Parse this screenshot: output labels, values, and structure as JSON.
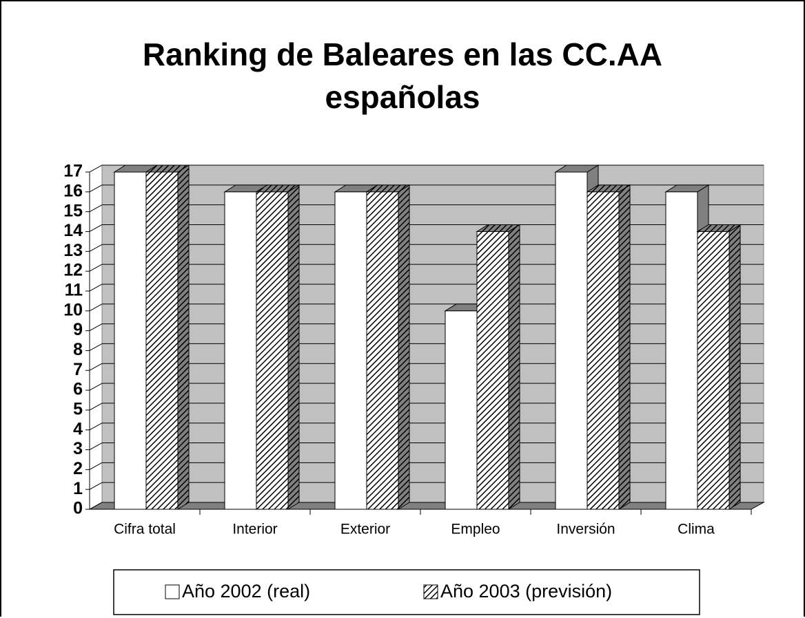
{
  "chart_data": {
    "type": "bar3d",
    "title": "Ranking de Baleares en las CC.AA españolas",
    "categories": [
      "Cifra total",
      "Interior",
      "Exterior",
      "Empleo",
      "Inversión",
      "Clima"
    ],
    "series": [
      {
        "name": "Año 2002 (real)",
        "color": "#ffffff",
        "values": [
          17,
          16,
          16,
          10,
          17,
          16
        ]
      },
      {
        "name": "Año 2003 (previsión)",
        "color": "#000000",
        "hatch": true,
        "values": [
          17,
          16,
          16,
          14,
          16,
          14
        ]
      }
    ],
    "ylim": [
      0,
      17
    ],
    "yticks": [
      0,
      1,
      2,
      3,
      4,
      5,
      6,
      7,
      8,
      9,
      10,
      11,
      12,
      13,
      14,
      15,
      16,
      17
    ],
    "grid": true,
    "wall_color": "#c0c0c0",
    "legend": "bottom"
  }
}
